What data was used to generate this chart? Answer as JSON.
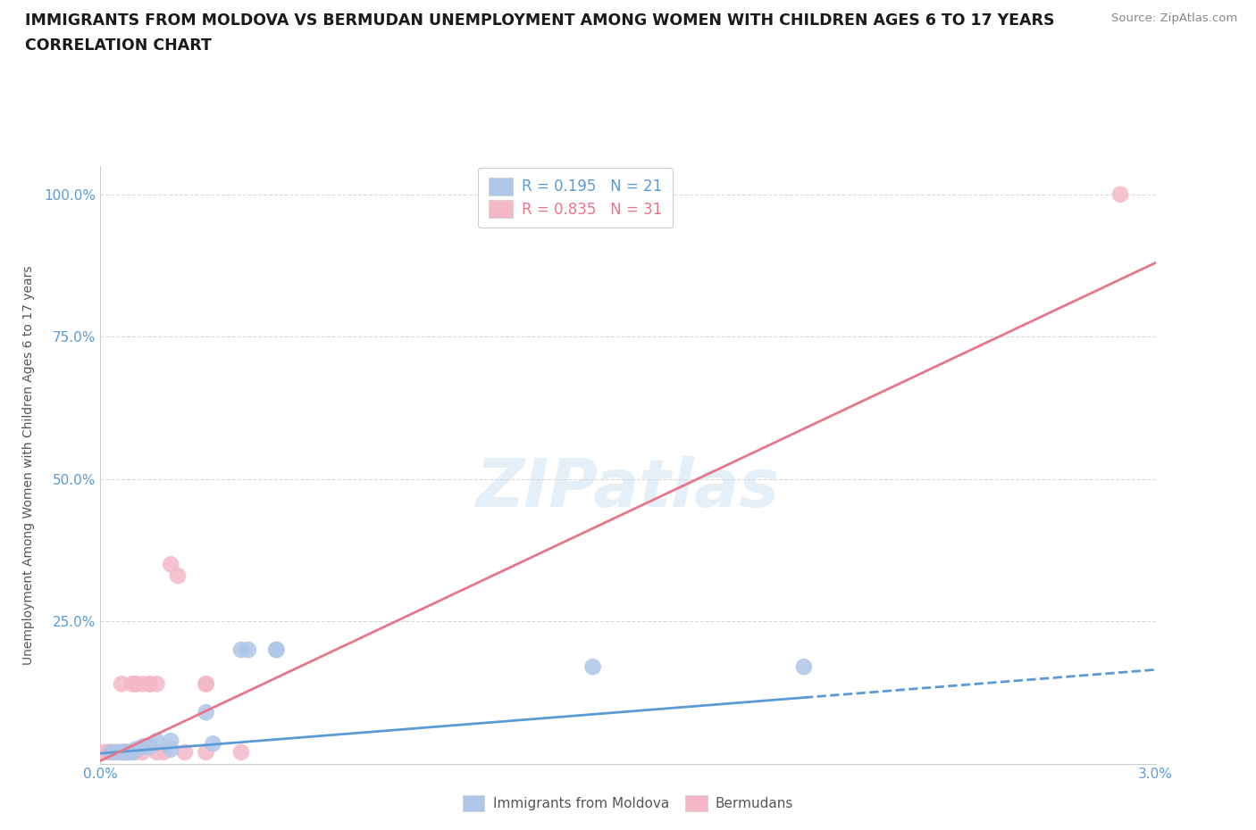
{
  "title_line1": "IMMIGRANTS FROM MOLDOVA VS BERMUDAN UNEMPLOYMENT AMONG WOMEN WITH CHILDREN AGES 6 TO 17 YEARS",
  "title_line2": "CORRELATION CHART",
  "source": "Source: ZipAtlas.com",
  "ylabel": "Unemployment Among Women with Children Ages 6 to 17 years",
  "xlim": [
    0.0,
    0.03
  ],
  "ylim": [
    0.0,
    1.05
  ],
  "xticks": [
    0.0,
    0.003,
    0.006,
    0.009,
    0.012,
    0.015,
    0.018,
    0.021,
    0.024,
    0.027,
    0.03
  ],
  "xtick_labels": [
    "0.0%",
    "",
    "",
    "",
    "",
    "",
    "",
    "",
    "",
    "",
    "3.0%"
  ],
  "yticks": [
    0.0,
    0.25,
    0.5,
    0.75,
    1.0
  ],
  "ytick_labels": [
    "",
    "25.0%",
    "50.0%",
    "75.0%",
    "100.0%"
  ],
  "legend_r1": "R = 0.195   N = 21",
  "legend_r2": "R = 0.835   N = 31",
  "legend_color1": "#aec6e8",
  "legend_color2": "#f4b8c8",
  "blue_color": "#5b9bd5",
  "pink_color": "#e8768a",
  "grid_color": "#d8d8d8",
  "watermark": "ZIPatlas",
  "moldova_points": [
    [
      0.0003,
      0.02
    ],
    [
      0.0005,
      0.02
    ],
    [
      0.0006,
      0.02
    ],
    [
      0.0007,
      0.02
    ],
    [
      0.0008,
      0.02
    ],
    [
      0.0009,
      0.02
    ],
    [
      0.001,
      0.025
    ],
    [
      0.0012,
      0.03
    ],
    [
      0.0013,
      0.03
    ],
    [
      0.0014,
      0.03
    ],
    [
      0.0016,
      0.04
    ],
    [
      0.002,
      0.025
    ],
    [
      0.002,
      0.04
    ],
    [
      0.003,
      0.09
    ],
    [
      0.0032,
      0.035
    ],
    [
      0.004,
      0.2
    ],
    [
      0.0042,
      0.2
    ],
    [
      0.005,
      0.2
    ],
    [
      0.005,
      0.2
    ],
    [
      0.014,
      0.17
    ],
    [
      0.02,
      0.17
    ]
  ],
  "bermuda_points": [
    [
      0.0001,
      0.02
    ],
    [
      0.0002,
      0.02
    ],
    [
      0.0003,
      0.02
    ],
    [
      0.0004,
      0.02
    ],
    [
      0.0005,
      0.02
    ],
    [
      0.0006,
      0.14
    ],
    [
      0.0006,
      0.02
    ],
    [
      0.0007,
      0.02
    ],
    [
      0.0007,
      0.02
    ],
    [
      0.0007,
      0.02
    ],
    [
      0.0008,
      0.02
    ],
    [
      0.0009,
      0.02
    ],
    [
      0.0009,
      0.14
    ],
    [
      0.001,
      0.02
    ],
    [
      0.001,
      0.14
    ],
    [
      0.001,
      0.14
    ],
    [
      0.0012,
      0.02
    ],
    [
      0.0012,
      0.14
    ],
    [
      0.0014,
      0.14
    ],
    [
      0.0014,
      0.14
    ],
    [
      0.0016,
      0.02
    ],
    [
      0.0016,
      0.14
    ],
    [
      0.0018,
      0.02
    ],
    [
      0.002,
      0.35
    ],
    [
      0.0022,
      0.33
    ],
    [
      0.0024,
      0.02
    ],
    [
      0.003,
      0.02
    ],
    [
      0.003,
      0.14
    ],
    [
      0.003,
      0.14
    ],
    [
      0.004,
      0.02
    ],
    [
      0.029,
      1.0
    ]
  ],
  "moldova_trendline_x": [
    0.0,
    0.03
  ],
  "moldova_trendline_y": [
    0.018,
    0.165
  ],
  "moldova_trend_solid_end": 0.02,
  "bermuda_trendline_x": [
    0.0,
    0.03
  ],
  "bermuda_trendline_y": [
    0.005,
    0.88
  ],
  "background_color": "#ffffff",
  "title_color": "#1a1a1a",
  "tick_label_color": "#5b9bd5",
  "axis_label_color": "#555555",
  "source_color": "#888888"
}
